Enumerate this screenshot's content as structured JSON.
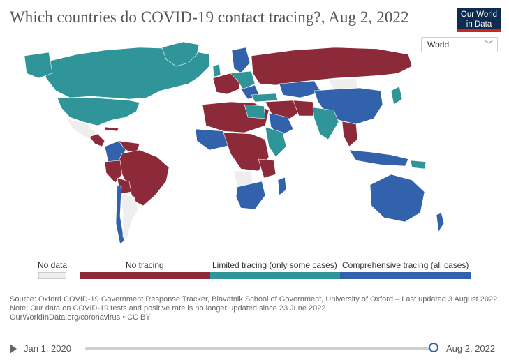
{
  "header": {
    "title": "Which countries do COVID-19 contact tracing?, Aug 2, 2022",
    "logo_line1": "Our World",
    "logo_line2": "in Data"
  },
  "entity_selector": {
    "selected": "World"
  },
  "legend": {
    "no_data": "No data",
    "no_tracing": "No tracing",
    "limited": "Limited tracing (only some cases)",
    "comprehensive": "Comprehensive tracing (all cases)"
  },
  "colors": {
    "no_data": "#eeeeee",
    "no_tracing": "#8c2a3a",
    "limited": "#2f9598",
    "comprehensive": "#3262ac",
    "accent_red": "#ce261e",
    "logo_bg": "#0d2a4f"
  },
  "footer": {
    "source": "Source: Oxford COVID-19 Government Response Tracker, Blavatnik School of Government, University of Oxford – Last updated 3 August 2022",
    "note": "Note: Our data on COVID-19 tests and positive rate is no longer updated since 23 June 2022.",
    "link": "OurWorldInData.org/coronavirus • CC BY"
  },
  "timeline": {
    "start": "Jan 1, 2020",
    "end": "Aug 2, 2022",
    "position_fraction": 1.0
  }
}
